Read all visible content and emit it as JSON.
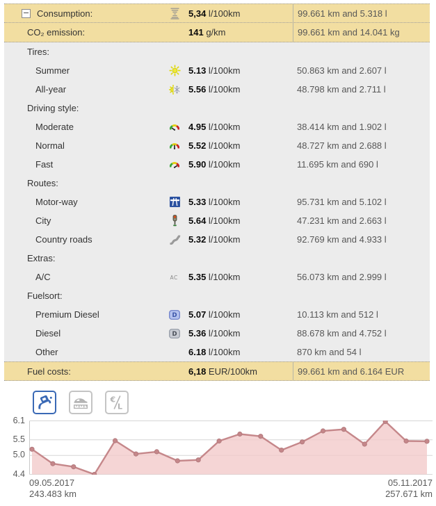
{
  "colors": {
    "summary_row_bg": "#f2dea1",
    "section_bg": "#ececec",
    "selected_button": "#3a69b5",
    "chart_line": "#c5878a",
    "chart_fill": "#f3cbcb"
  },
  "table": {
    "rows": [
      {
        "type": "summary",
        "variant": "consumption",
        "collapse_icon": true,
        "label": "Consumption:",
        "icon": "consumption-gauge-icon",
        "value": "5,34",
        "unit": "l/100km",
        "stats": "99.661 km and 5.318 l"
      },
      {
        "type": "summary",
        "variant": "co2",
        "collapse_icon": false,
        "label": "CO₂ emission:",
        "icon": null,
        "value": "141",
        "unit": "g/km",
        "stats": "99.661 km and 14.041 kg"
      },
      {
        "type": "header",
        "label": "Tires:"
      },
      {
        "type": "item",
        "label": "Summer",
        "icon": "sun-icon",
        "value": "5.13",
        "unit": "l/100km",
        "stats": "50.863 km and 2.607 l"
      },
      {
        "type": "item",
        "label": "All-year",
        "icon": "sun-snowflake-icon",
        "value": "5.56",
        "unit": "l/100km",
        "stats": "48.798 km and 2.711 l"
      },
      {
        "type": "header",
        "label": "Driving style:"
      },
      {
        "type": "item",
        "label": "Moderate",
        "icon": "gauge-low-icon",
        "value": "4.95",
        "unit": "l/100km",
        "stats": "38.414 km and 1.902 l"
      },
      {
        "type": "item",
        "label": "Normal",
        "icon": "gauge-mid-icon",
        "value": "5.52",
        "unit": "l/100km",
        "stats": "48.727 km and 2.688 l"
      },
      {
        "type": "item",
        "label": "Fast",
        "icon": "gauge-high-icon",
        "value": "5.90",
        "unit": "l/100km",
        "stats": "11.695 km and 690 l"
      },
      {
        "type": "header",
        "label": "Routes:"
      },
      {
        "type": "item",
        "label": "Motor-way",
        "icon": "motorway-icon",
        "value": "5.33",
        "unit": "l/100km",
        "stats": "95.731 km and 5.102 l"
      },
      {
        "type": "item",
        "label": "City",
        "icon": "traffic-light-icon",
        "value": "5.64",
        "unit": "l/100km",
        "stats": "47.231 km and 2.663 l"
      },
      {
        "type": "item",
        "label": "Country roads",
        "icon": "winding-road-icon",
        "value": "5.32",
        "unit": "l/100km",
        "stats": "92.769 km and 4.933 l"
      },
      {
        "type": "header",
        "label": "Extras:"
      },
      {
        "type": "item",
        "label": "A/C",
        "icon": "ac-icon",
        "value": "5.35",
        "unit": "l/100km",
        "stats": "56.073 km and 2.999 l"
      },
      {
        "type": "header",
        "label": "Fuelsort:"
      },
      {
        "type": "item",
        "label": "Premium Diesel",
        "icon": "diesel-premium-icon",
        "value": "5.07",
        "unit": "l/100km",
        "stats": "10.113 km and 512 l"
      },
      {
        "type": "item",
        "label": "Diesel",
        "icon": "diesel-icon",
        "value": "5.36",
        "unit": "l/100km",
        "stats": "88.678 km and 4.752 l"
      },
      {
        "type": "item",
        "label": "Other",
        "icon": null,
        "value": "6.18",
        "unit": "l/100km",
        "stats": "870 km and 54 l"
      },
      {
        "type": "summary",
        "variant": "costs",
        "collapse_icon": false,
        "label": "Fuel costs:",
        "icon": null,
        "value": "6,18",
        "unit": "EUR/100km",
        "stats": "99.661 km and 6.164 EUR"
      }
    ]
  },
  "toolbar": {
    "buttons": [
      {
        "name": "consumption-chart-button",
        "icon": "fuel-pump-icon",
        "selected": true
      },
      {
        "name": "distance-chart-button",
        "icon": "car-ruler-icon",
        "selected": false
      },
      {
        "name": "fuel-price-chart-button",
        "icon": "price-per-liter-icon",
        "selected": false
      }
    ]
  },
  "chart_data": {
    "type": "area",
    "ylim": [
      4.4,
      6.1
    ],
    "yticks": [
      6.1,
      5.5,
      5.0,
      4.4
    ],
    "values": [
      5.2,
      4.74,
      4.64,
      4.4,
      5.47,
      5.05,
      5.12,
      4.83,
      4.86,
      5.46,
      5.68,
      5.61,
      5.17,
      5.43,
      5.78,
      5.83,
      5.36,
      6.08,
      5.46,
      5.45
    ],
    "x_start": {
      "date": "09.05.2017",
      "odometer": "243.483 km"
    },
    "x_end": {
      "date": "05.11.2017",
      "odometer": "257.671 km"
    },
    "grid": true,
    "legend": false
  }
}
